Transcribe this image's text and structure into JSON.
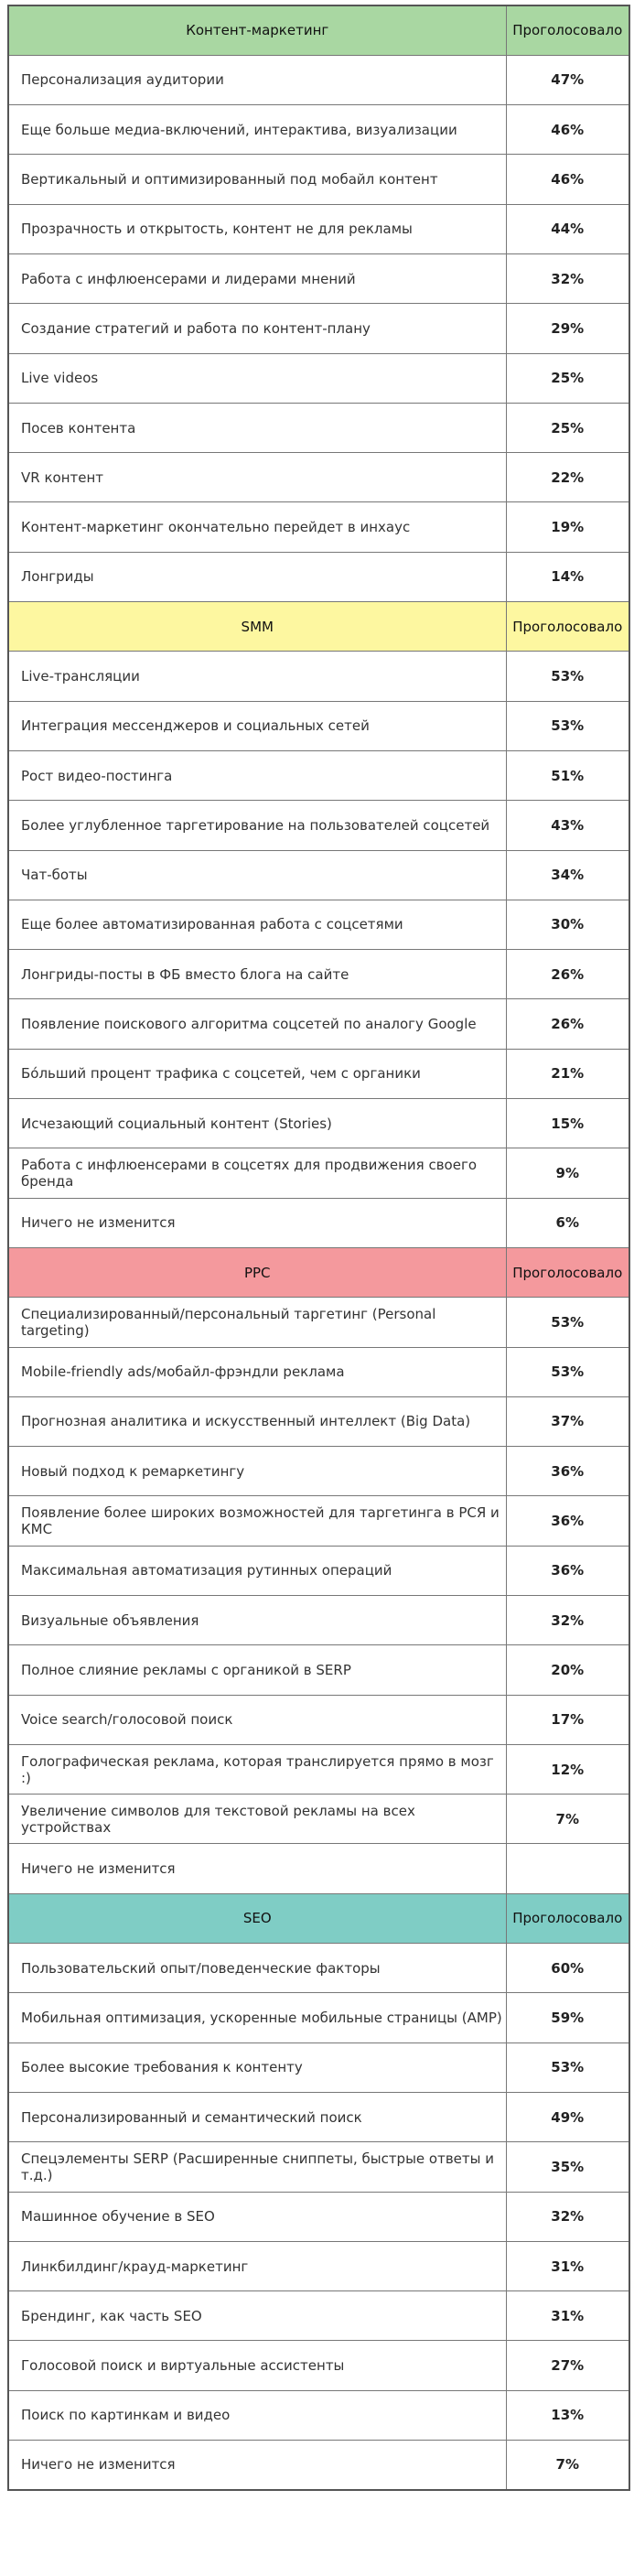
{
  "sections": [
    {
      "title": "Контент-маркетинг",
      "column": "Проголосовало",
      "rows": [
        [
          "Персонализация аудитории",
          "47%"
        ],
        [
          "Еще больше медиа-включений, интерактива, визуализации",
          "46%"
        ],
        [
          "Вертикальный и оптимизированный под мобайл контент",
          "46%"
        ],
        [
          "Прозрачность и открытость, контент не для рекламы",
          "44%"
        ],
        [
          "Работа с инфлюенсерами и лидерами мнений",
          "32%"
        ],
        [
          "Создание стратегий и работа по контент-плану",
          "29%"
        ],
        [
          "Live videos",
          "25%"
        ],
        [
          "Посев контента",
          "25%"
        ],
        [
          "VR контент",
          "22%"
        ],
        [
          "Контент-маркетинг окончательно перейдет в инхаус",
          "19%"
        ],
        [
          "Лонгриды",
          "14%"
        ]
      ]
    },
    {
      "title": "SMM",
      "column": "Проголосовало",
      "rows": [
        [
          "Live-трансляции",
          "53%"
        ],
        [
          "Интеграция мессенджеров и социальных сетей",
          "53%"
        ],
        [
          "Рост видео-постинга",
          "51%"
        ],
        [
          "Более углубленное таргетирование на пользователей соцсетей",
          "43%"
        ],
        [
          "Чат-боты",
          "34%"
        ],
        [
          "Еще более автоматизированная работа с соцсетями",
          "30%"
        ],
        [
          "Лонгриды-посты в ФБ вместо блога на сайте",
          "26%"
        ],
        [
          "Появление поискового алгоритма соцсетей по аналогу Google",
          "26%"
        ],
        [
          "Бóльший процент трафика с соцсетей, чем с органики",
          "21%"
        ],
        [
          "Исчезающий социальный контент (Stories)",
          "15%"
        ],
        [
          "Работа с инфлюенсерами в соцсетях для продвижения своего бренда",
          "9%"
        ],
        [
          "Ничего не изменится",
          "6%"
        ]
      ]
    },
    {
      "title": "PPC",
      "column": "Проголосовало",
      "rows": [
        [
          "Специализированный/персональный таргетинг (Personal targeting)",
          "53%"
        ],
        [
          "Mobile-friendly ads/мобайл-фрэндли реклама",
          "53%"
        ],
        [
          "Прогнозная аналитика и искусственный интеллект (Big Data)",
          "37%"
        ],
        [
          "Новый подход к ремаркетингу",
          "36%"
        ],
        [
          "Появление более широких возможностей для таргетинга в РСЯ и КМС",
          "36%"
        ],
        [
          "Максимальная автоматизация рутинных операций",
          "36%"
        ],
        [
          "Визуальные объявления",
          "32%"
        ],
        [
          "Полное слияние рекламы с органикой в SERP",
          "20%"
        ],
        [
          "Voice search/голосовой поиск",
          "17%"
        ],
        [
          "Голографическая реклама, которая транслируется прямо в мозг :)",
          "12%"
        ],
        [
          "Увеличение символов для текстовой рекламы на всех устройствах",
          "7%"
        ],
        [
          "Ничего не изменится",
          null
        ]
      ]
    },
    {
      "title": "SEO",
      "column": "Проголосовало",
      "rows": [
        [
          "Пользовательский опыт/поведенческие факторы",
          "60%"
        ],
        [
          "Мобильная оптимизация, ускоренные мобильные страницы (AMP)",
          "59%"
        ],
        [
          "Более высокие требования к контенту",
          "53%"
        ],
        [
          "Персонализированный и семантический поиск",
          "49%"
        ],
        [
          "Спецэлементы SERP (Расширенные сниппеты, быстрые ответы и т.д.)",
          "35%"
        ],
        [
          "Машинное обучение в SEO",
          "32%"
        ],
        [
          "Линкбилдинг/крауд-маркетинг",
          "31%"
        ],
        [
          "Брендинг, как часть SEO",
          "31%"
        ],
        [
          "Голосовой поиск и виртуальные ассистенты",
          "27%"
        ],
        [
          "Поиск по картинкам и видео",
          "13%"
        ],
        [
          "Ничего не изменится",
          "7%"
        ]
      ]
    }
  ]
}
